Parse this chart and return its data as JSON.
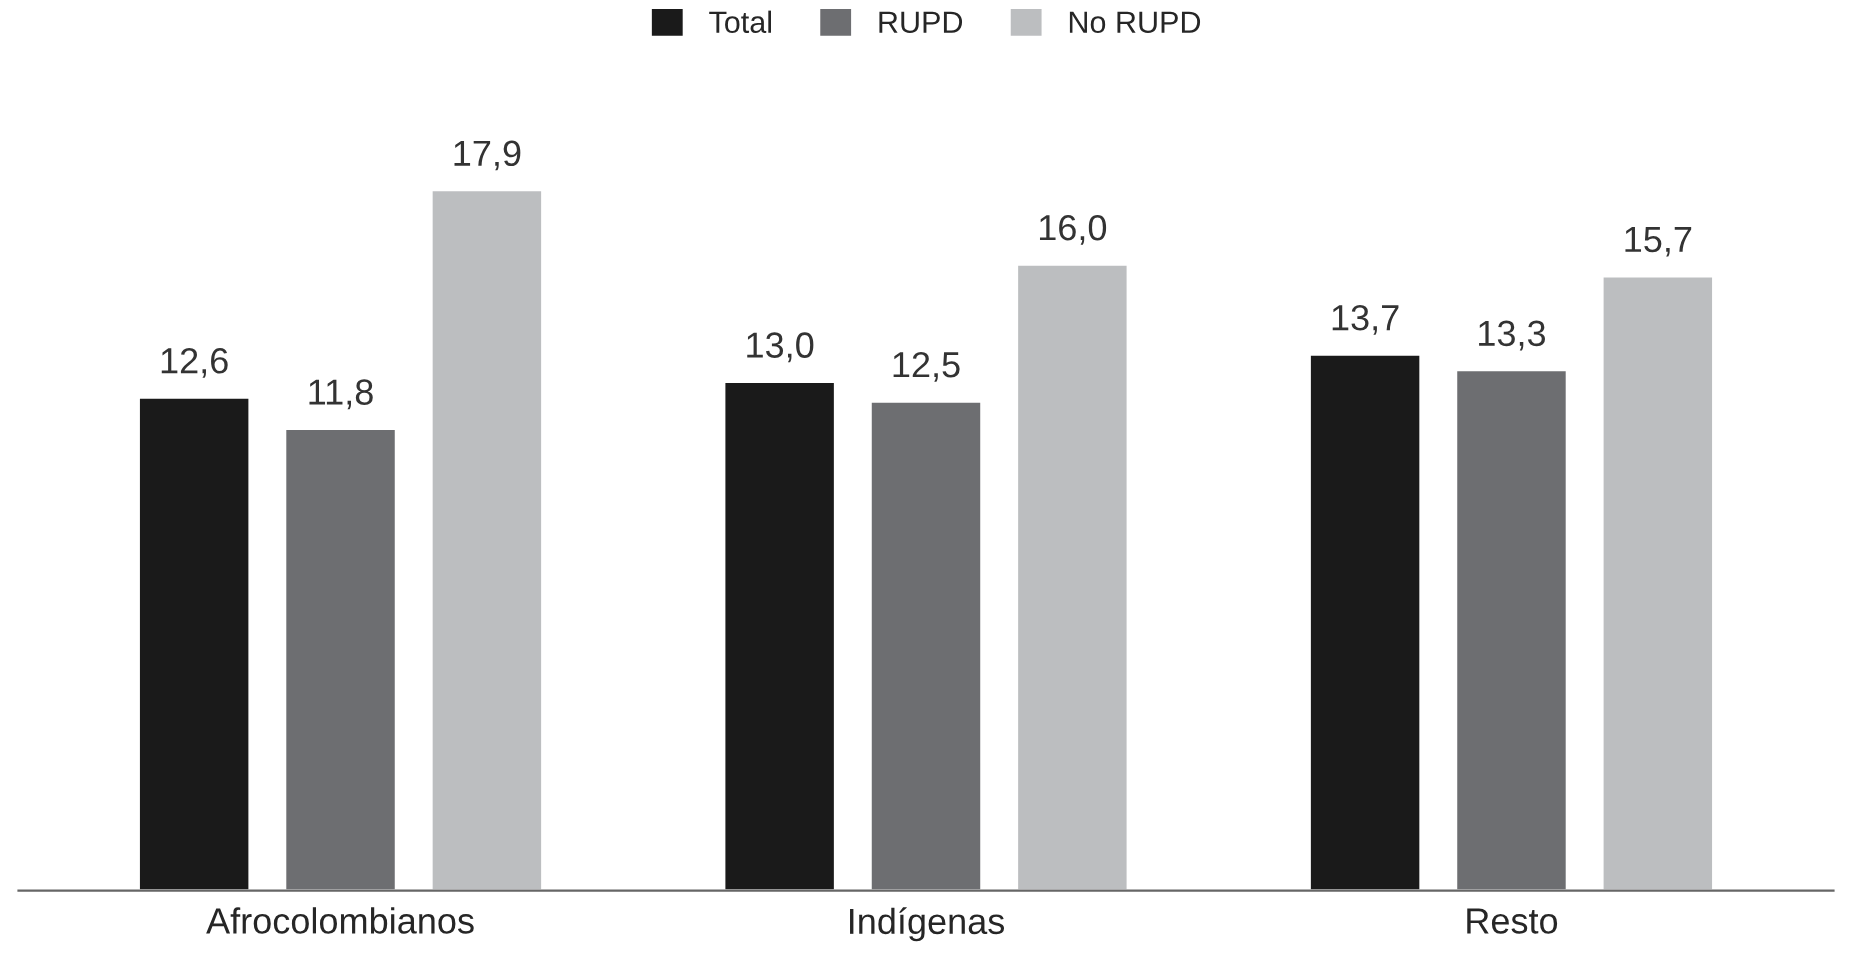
{
  "chart_data": {
    "type": "bar",
    "categories": [
      "Afrocolombianos",
      "Indígenas",
      "Resto"
    ],
    "series": [
      {
        "name": "Total",
        "color": "#1a1a1a",
        "values": [
          12.6,
          13.0,
          13.7
        ],
        "value_labels": [
          "12,6",
          "13,0",
          "13,7"
        ]
      },
      {
        "name": "RUPD",
        "color": "#6d6e71",
        "values": [
          11.8,
          12.5,
          13.3
        ],
        "value_labels": [
          "11,8",
          "12,5",
          "13,3"
        ]
      },
      {
        "name": "No RUPD",
        "color": "#bcbec0",
        "values": [
          17.9,
          16.0,
          15.7
        ],
        "value_labels": [
          "17,9",
          "16,0",
          "15,7"
        ]
      }
    ],
    "legend": "top",
    "grid": false
  }
}
